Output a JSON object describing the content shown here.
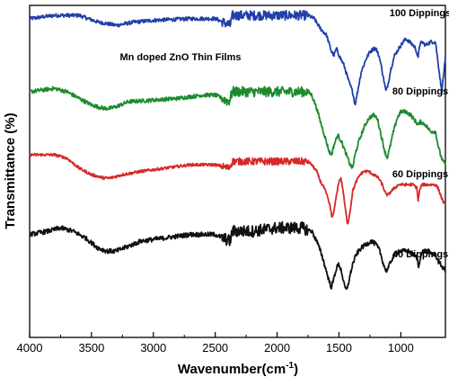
{
  "chart_data": {
    "type": "line",
    "annotation": "Mn doped ZnO Thin Films",
    "xlabel": "Wavenumber(cm",
    "xlabel_sup": "-1",
    "xlabel_close": ")",
    "ylabel": "Transmittance (%)",
    "xlim": [
      4000,
      640
    ],
    "x_reversed": true,
    "y_scale": "arbitrary, stacked offsets, no tick labels",
    "x_ticks": [
      4000,
      3500,
      3000,
      2500,
      2000,
      1500,
      1000
    ],
    "x_tick_labels": [
      "4000",
      "3500",
      "3000",
      "2500",
      "2000",
      "1500",
      "1000"
    ],
    "grid": false,
    "series": [
      {
        "name": "100 Dippings",
        "color": "#2040a8",
        "noise": 1.6,
        "points": [
          [
            4000,
            96
          ],
          [
            3800,
            97
          ],
          [
            3600,
            97
          ],
          [
            3450,
            95
          ],
          [
            3300,
            94
          ],
          [
            3150,
            95
          ],
          [
            3000,
            95.5
          ],
          [
            2700,
            96
          ],
          [
            2500,
            96
          ],
          [
            2380,
            94
          ],
          [
            2360,
            97
          ],
          [
            2200,
            97
          ],
          [
            2000,
            97
          ],
          [
            1900,
            97
          ],
          [
            1750,
            97
          ],
          [
            1700,
            96
          ],
          [
            1650,
            93
          ],
          [
            1600,
            91
          ],
          [
            1560,
            86
          ],
          [
            1540,
            85
          ],
          [
            1520,
            87
          ],
          [
            1500,
            85
          ],
          [
            1460,
            82
          ],
          [
            1420,
            77
          ],
          [
            1390,
            74
          ],
          [
            1370,
            70
          ],
          [
            1350,
            74
          ],
          [
            1320,
            80
          ],
          [
            1280,
            84
          ],
          [
            1250,
            86
          ],
          [
            1220,
            87
          ],
          [
            1200,
            87
          ],
          [
            1170,
            84
          ],
          [
            1140,
            78
          ],
          [
            1120,
            74
          ],
          [
            1100,
            77
          ],
          [
            1080,
            81
          ],
          [
            1050,
            85
          ],
          [
            1000,
            88
          ],
          [
            960,
            90
          ],
          [
            930,
            89
          ],
          [
            900,
            88
          ],
          [
            880,
            87
          ],
          [
            860,
            84
          ],
          [
            850,
            88
          ],
          [
            830,
            89
          ],
          [
            800,
            88
          ],
          [
            760,
            89
          ],
          [
            720,
            89
          ],
          [
            690,
            80
          ],
          [
            670,
            74
          ],
          [
            655,
            79
          ],
          [
            640,
            84
          ]
        ]
      },
      {
        "name": "80 Dippings",
        "color": "#1e8a30",
        "noise": 1.7,
        "points": [
          [
            4000,
            74
          ],
          [
            3800,
            75
          ],
          [
            3700,
            74
          ],
          [
            3600,
            72
          ],
          [
            3500,
            70
          ],
          [
            3400,
            69
          ],
          [
            3350,
            69
          ],
          [
            3300,
            69.5
          ],
          [
            3200,
            71
          ],
          [
            3000,
            71.5
          ],
          [
            2800,
            72
          ],
          [
            2600,
            73
          ],
          [
            2500,
            73
          ],
          [
            2390,
            71
          ],
          [
            2360,
            74
          ],
          [
            2200,
            74
          ],
          [
            2000,
            74
          ],
          [
            1850,
            74
          ],
          [
            1750,
            74
          ],
          [
            1720,
            73
          ],
          [
            1680,
            69
          ],
          [
            1650,
            65
          ],
          [
            1610,
            60
          ],
          [
            1580,
            56
          ],
          [
            1560,
            55
          ],
          [
            1540,
            58
          ],
          [
            1510,
            61
          ],
          [
            1480,
            59
          ],
          [
            1440,
            55
          ],
          [
            1410,
            52
          ],
          [
            1390,
            51
          ],
          [
            1370,
            55
          ],
          [
            1340,
            59
          ],
          [
            1300,
            63
          ],
          [
            1260,
            66
          ],
          [
            1220,
            67
          ],
          [
            1190,
            66
          ],
          [
            1160,
            61
          ],
          [
            1130,
            56
          ],
          [
            1110,
            54
          ],
          [
            1090,
            57
          ],
          [
            1060,
            62
          ],
          [
            1030,
            66
          ],
          [
            1000,
            68
          ],
          [
            960,
            68
          ],
          [
            920,
            67
          ],
          [
            880,
            65
          ],
          [
            860,
            64
          ],
          [
            840,
            65
          ],
          [
            800,
            64
          ],
          [
            760,
            62
          ],
          [
            720,
            62
          ],
          [
            700,
            58
          ],
          [
            680,
            55
          ],
          [
            660,
            53
          ],
          [
            640,
            52
          ]
        ]
      },
      {
        "name": "60 Dippings",
        "color": "#d62828",
        "noise": 1.2,
        "points": [
          [
            4000,
            55
          ],
          [
            3800,
            55
          ],
          [
            3700,
            54
          ],
          [
            3600,
            51
          ],
          [
            3500,
            49
          ],
          [
            3400,
            48
          ],
          [
            3350,
            48
          ],
          [
            3250,
            49
          ],
          [
            3100,
            50
          ],
          [
            2900,
            51
          ],
          [
            2700,
            52
          ],
          [
            2500,
            52
          ],
          [
            2390,
            51
          ],
          [
            2360,
            53
          ],
          [
            2200,
            53
          ],
          [
            2000,
            53
          ],
          [
            1850,
            53
          ],
          [
            1750,
            53
          ],
          [
            1720,
            52
          ],
          [
            1680,
            50
          ],
          [
            1650,
            47
          ],
          [
            1620,
            45
          ],
          [
            1590,
            42
          ],
          [
            1570,
            39
          ],
          [
            1555,
            36
          ],
          [
            1540,
            38
          ],
          [
            1520,
            43
          ],
          [
            1500,
            47
          ],
          [
            1485,
            48
          ],
          [
            1470,
            45
          ],
          [
            1450,
            39
          ],
          [
            1430,
            34
          ],
          [
            1410,
            38
          ],
          [
            1390,
            44
          ],
          [
            1360,
            47
          ],
          [
            1330,
            49
          ],
          [
            1300,
            50
          ],
          [
            1260,
            50
          ],
          [
            1220,
            49
          ],
          [
            1180,
            48
          ],
          [
            1150,
            46
          ],
          [
            1120,
            43
          ],
          [
            1100,
            43
          ],
          [
            1080,
            44
          ],
          [
            1050,
            45
          ],
          [
            1020,
            46
          ],
          [
            980,
            46
          ],
          [
            940,
            46
          ],
          [
            900,
            46
          ],
          [
            870,
            45
          ],
          [
            860,
            41
          ],
          [
            850,
            44
          ],
          [
            830,
            46
          ],
          [
            800,
            46
          ],
          [
            760,
            46
          ],
          [
            720,
            46
          ],
          [
            700,
            45
          ],
          [
            680,
            43
          ],
          [
            660,
            41
          ],
          [
            640,
            40
          ]
        ]
      },
      {
        "name": "40 Dippings",
        "color": "#111111",
        "noise": 2.0,
        "points": [
          [
            4000,
            31
          ],
          [
            3850,
            32
          ],
          [
            3750,
            33
          ],
          [
            3650,
            32
          ],
          [
            3550,
            30
          ],
          [
            3450,
            27
          ],
          [
            3380,
            26
          ],
          [
            3300,
            26
          ],
          [
            3200,
            27.5
          ],
          [
            3100,
            29
          ],
          [
            2900,
            30
          ],
          [
            2700,
            31
          ],
          [
            2500,
            31
          ],
          [
            2380,
            29
          ],
          [
            2360,
            32
          ],
          [
            2200,
            32
          ],
          [
            2000,
            33
          ],
          [
            1900,
            33
          ],
          [
            1800,
            33
          ],
          [
            1720,
            32
          ],
          [
            1680,
            29
          ],
          [
            1640,
            25
          ],
          [
            1610,
            21
          ],
          [
            1580,
            17
          ],
          [
            1560,
            15
          ],
          [
            1540,
            18
          ],
          [
            1520,
            21
          ],
          [
            1500,
            22
          ],
          [
            1480,
            20
          ],
          [
            1460,
            16
          ],
          [
            1440,
            14
          ],
          [
            1420,
            17
          ],
          [
            1390,
            22
          ],
          [
            1360,
            25
          ],
          [
            1320,
            27
          ],
          [
            1280,
            28
          ],
          [
            1240,
            29
          ],
          [
            1200,
            28
          ],
          [
            1170,
            26
          ],
          [
            1140,
            22
          ],
          [
            1120,
            20
          ],
          [
            1100,
            21
          ],
          [
            1080,
            23
          ],
          [
            1050,
            25
          ],
          [
            1020,
            26
          ],
          [
            980,
            26
          ],
          [
            940,
            26
          ],
          [
            900,
            25
          ],
          [
            870,
            24
          ],
          [
            855,
            21
          ],
          [
            845,
            24
          ],
          [
            820,
            26
          ],
          [
            780,
            26
          ],
          [
            740,
            25
          ],
          [
            720,
            25
          ],
          [
            700,
            23
          ],
          [
            680,
            22
          ],
          [
            660,
            21
          ],
          [
            640,
            20
          ]
        ]
      }
    ]
  }
}
